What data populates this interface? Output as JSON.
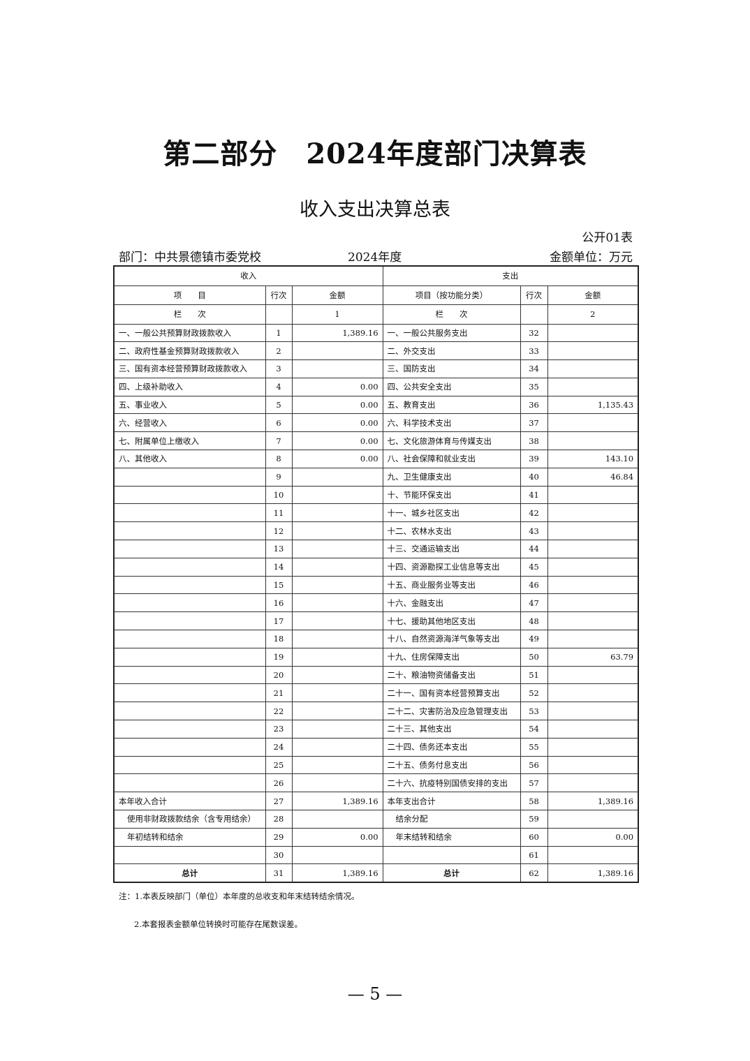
{
  "title": "第二部分　2024年度部门决算表",
  "subtitle": "收入支出决算总表",
  "table_no": "公开01表",
  "department": "部门：中共景德镇市委党校",
  "year": "2024年度",
  "unit": "金额单位：万元",
  "header": {
    "income": "收入",
    "expense": "支出",
    "item": "项　　目",
    "row_no": "行次",
    "amount": "金额",
    "item_func": "项目（按功能分类）",
    "column": "栏　　次",
    "col1": "1",
    "col2": "2"
  },
  "rows": [
    [
      "一、一般公共预算财政拨款收入",
      "1",
      "1,389.16",
      "一、一般公共服务支出",
      "32",
      ""
    ],
    [
      "二、政府性基金预算财政拨款收入",
      "2",
      "",
      "二、外交支出",
      "33",
      ""
    ],
    [
      "三、国有资本经营预算财政拨款收入",
      "3",
      "",
      "三、国防支出",
      "34",
      ""
    ],
    [
      "四、上级补助收入",
      "4",
      "0.00",
      "四、公共安全支出",
      "35",
      ""
    ],
    [
      "五、事业收入",
      "5",
      "0.00",
      "五、教育支出",
      "36",
      "1,135.43"
    ],
    [
      "六、经营收入",
      "6",
      "0.00",
      "六、科学技术支出",
      "37",
      ""
    ],
    [
      "七、附属单位上缴收入",
      "7",
      "0.00",
      "七、文化旅游体育与传媒支出",
      "38",
      ""
    ],
    [
      "八、其他收入",
      "8",
      "0.00",
      "八、社会保障和就业支出",
      "39",
      "143.10"
    ],
    [
      "",
      "9",
      "",
      "九、卫生健康支出",
      "40",
      "46.84"
    ],
    [
      "",
      "10",
      "",
      "十、节能环保支出",
      "41",
      ""
    ],
    [
      "",
      "11",
      "",
      "十一、城乡社区支出",
      "42",
      ""
    ],
    [
      "",
      "12",
      "",
      "十二、农林水支出",
      "43",
      ""
    ],
    [
      "",
      "13",
      "",
      "十三、交通运输支出",
      "44",
      ""
    ],
    [
      "",
      "14",
      "",
      "十四、资源勘探工业信息等支出",
      "45",
      ""
    ],
    [
      "",
      "15",
      "",
      "十五、商业服务业等支出",
      "46",
      ""
    ],
    [
      "",
      "16",
      "",
      "十六、金融支出",
      "47",
      ""
    ],
    [
      "",
      "17",
      "",
      "十七、援助其他地区支出",
      "48",
      ""
    ],
    [
      "",
      "18",
      "",
      "十八、自然资源海洋气象等支出",
      "49",
      ""
    ],
    [
      "",
      "19",
      "",
      "十九、住房保障支出",
      "50",
      "63.79"
    ],
    [
      "",
      "20",
      "",
      "二十、粮油物资储备支出",
      "51",
      ""
    ],
    [
      "",
      "21",
      "",
      "二十一、国有资本经营预算支出",
      "52",
      ""
    ],
    [
      "",
      "22",
      "",
      "二十二、灾害防治及应急管理支出",
      "53",
      ""
    ],
    [
      "",
      "23",
      "",
      "二十三、其他支出",
      "54",
      ""
    ],
    [
      "",
      "24",
      "",
      "二十四、债务还本支出",
      "55",
      ""
    ],
    [
      "",
      "25",
      "",
      "二十五、债务付息支出",
      "56",
      ""
    ],
    [
      "",
      "26",
      "",
      "二十六、抗疫特别国债安排的支出",
      "57",
      ""
    ],
    [
      "本年收入合计",
      "27",
      "1,389.16",
      "本年支出合计",
      "58",
      "1,389.16"
    ],
    [
      "使用非财政拨款结余（含专用结余）",
      "28",
      "",
      "结余分配",
      "59",
      ""
    ],
    [
      "年初结转和结余",
      "29",
      "0.00",
      "年末结转和结余",
      "60",
      "0.00"
    ],
    [
      "",
      "30",
      "",
      "",
      "61",
      ""
    ],
    [
      "总计",
      "31",
      "1,389.16",
      "总计",
      "62",
      "1,389.16"
    ]
  ],
  "notes": [
    "注：1.本表反映部门（单位）本年度的总收支和年末结转结余情况。",
    "2.本套报表金额单位转换时可能存在尾数误差。"
  ],
  "page_number": "— 5 —"
}
